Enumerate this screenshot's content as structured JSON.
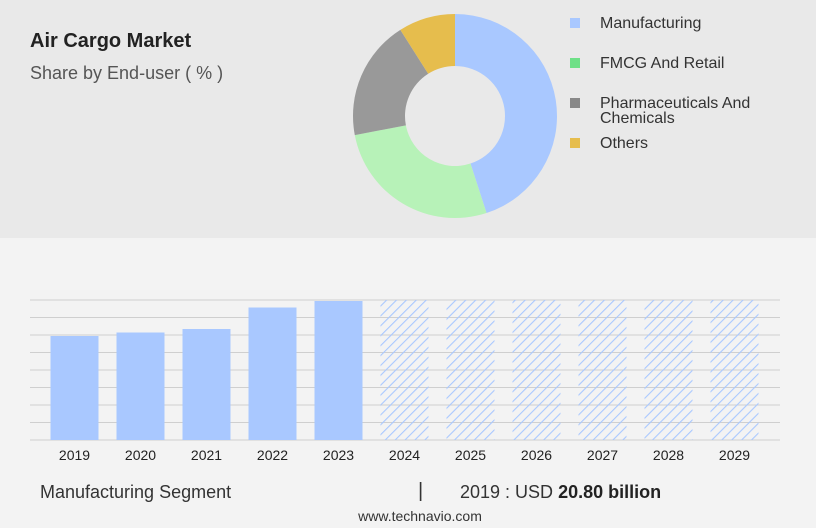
{
  "title": "Air Cargo Market",
  "subtitle": "Share by End-user ( % )",
  "colors": {
    "manufacturing": "#a9c8ff",
    "fmcg": "#b7f2b8",
    "pharma": "#999999",
    "others": "#e6bd4d",
    "legend_fmcg": "#6ee087",
    "legend_pharma": "#888888",
    "hatch": "#a9c8ff"
  },
  "chart_data": [
    {
      "type": "pie",
      "style": "donut",
      "legend_position": "right",
      "categories": [
        "Manufacturing",
        "FMCG And Retail",
        "Pharmaceuticals And Chemicals",
        "Others"
      ],
      "values": [
        45,
        27,
        19,
        9
      ]
    },
    {
      "type": "bar",
      "categories": [
        "2019",
        "2020",
        "2021",
        "2022",
        "2023",
        "2024",
        "2025",
        "2026",
        "2027",
        "2028",
        "2029"
      ],
      "values": [
        20.8,
        21.5,
        22.2,
        26.5,
        27.8,
        null,
        null,
        null,
        null,
        null,
        null
      ],
      "forecast_categories": [
        "2024",
        "2025",
        "2026",
        "2027",
        "2028",
        "2029"
      ],
      "ylim": [
        0,
        28
      ],
      "grid": true
    }
  ],
  "footer": {
    "segment": "Manufacturing Segment",
    "separator": "|",
    "year_label": "2019 : USD",
    "value_label": "20.80 billion"
  },
  "source": "www.technavio.com"
}
